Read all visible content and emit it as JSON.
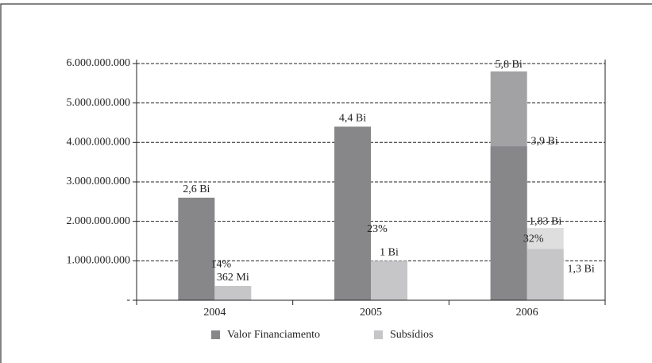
{
  "chart_data": {
    "type": "bar",
    "categories": [
      "2004",
      "2005",
      "2006"
    ],
    "series": [
      {
        "name": "Valor Financiamento",
        "color": "#87878a",
        "values": [
          2600000000,
          4400000000,
          3900000000
        ],
        "value_labels": [
          "2,6 Bi",
          "4,4 Bi",
          "3,9 Bi"
        ]
      },
      {
        "name": "Subsídios",
        "color": "#c6c6c8",
        "values": [
          362000000,
          1000000000,
          1300000000
        ],
        "value_labels": [
          "362 Mi",
          "1 Bi",
          "1,3 Bi"
        ]
      }
    ],
    "overlays": [
      {
        "series": 0,
        "category": 2,
        "value": 5800000000,
        "value_label": "5,8 Bi",
        "color": "#a2a2a5"
      },
      {
        "series": 1,
        "category": 2,
        "value": 1830000000,
        "value_label": "1,83 Bi",
        "color": "#dededf"
      }
    ],
    "percent_labels": [
      "14%",
      "23%",
      "32%"
    ],
    "ylim": [
      0,
      6100000000
    ],
    "yticks": [
      {
        "value": 0,
        "label": "-"
      },
      {
        "value": 1000000000,
        "label": "1.000.000.000"
      },
      {
        "value": 2000000000,
        "label": "2.000.000.000"
      },
      {
        "value": 3000000000,
        "label": "3.000.000.000"
      },
      {
        "value": 4000000000,
        "label": "4.000.000.000"
      },
      {
        "value": 5000000000,
        "label": "5.000.000.000"
      },
      {
        "value": 6000000000,
        "label": "6.000.000.000"
      }
    ],
    "grid": true,
    "legend": "bottom"
  }
}
